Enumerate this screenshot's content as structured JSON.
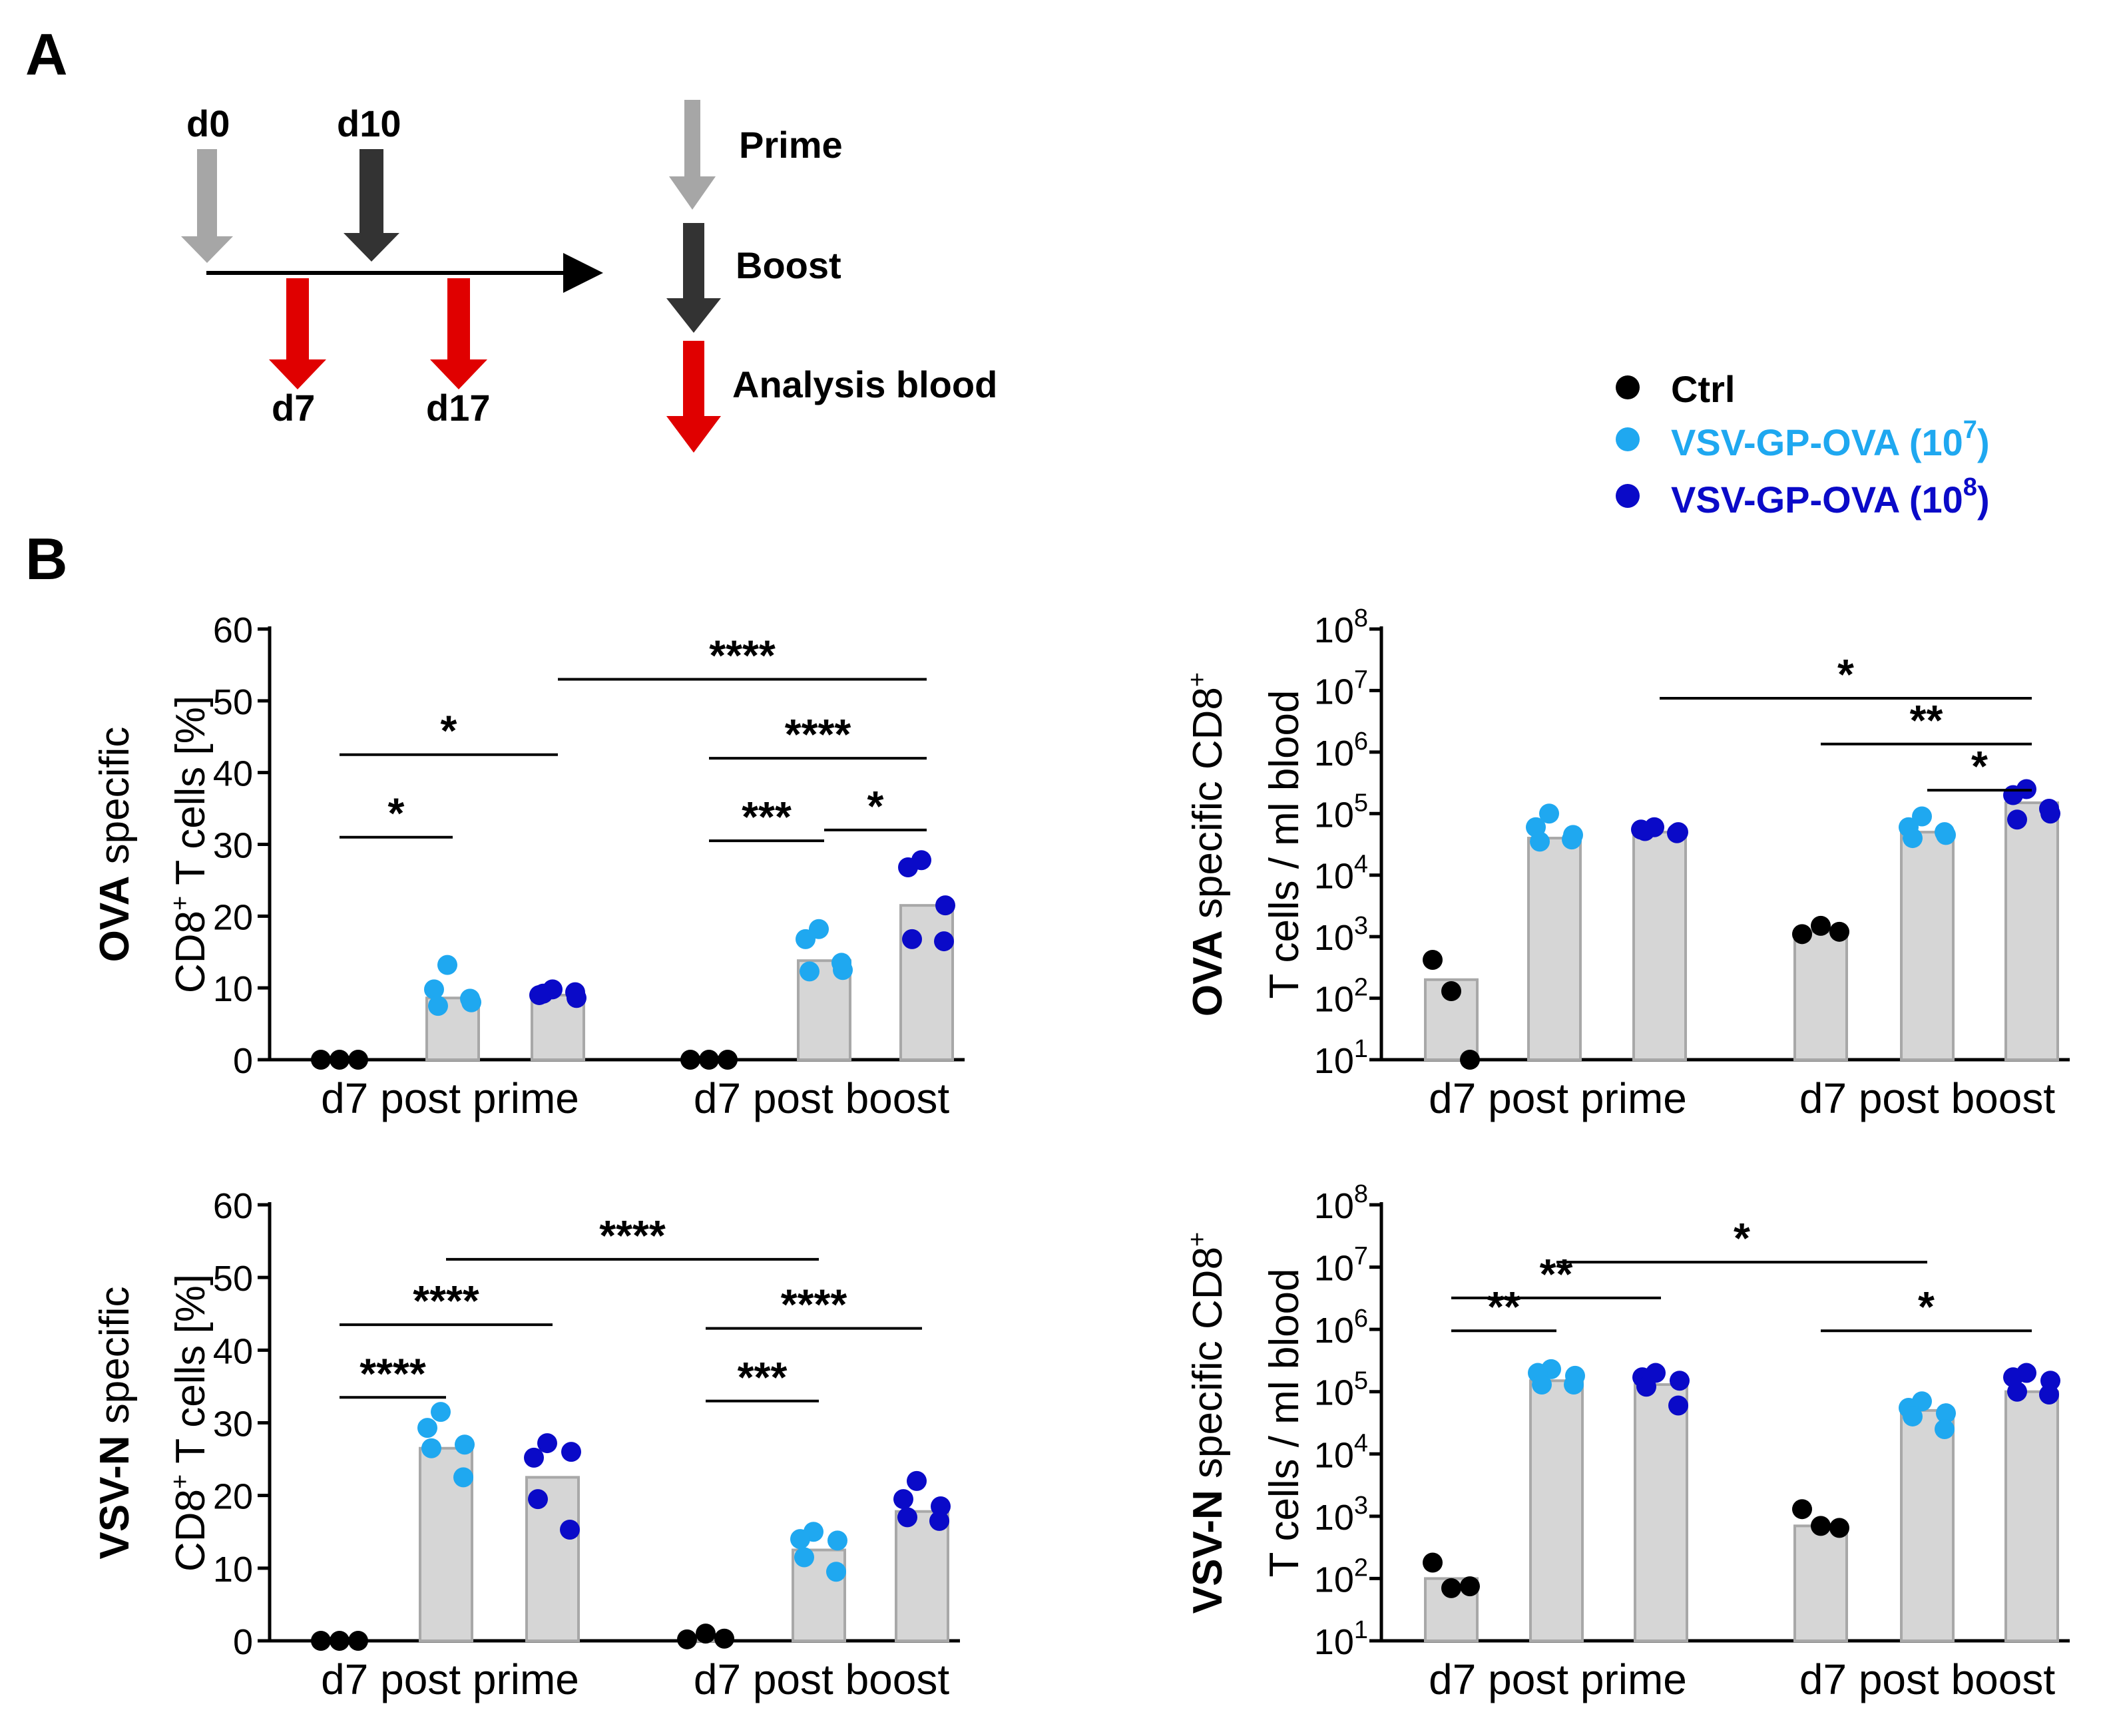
{
  "panel_a": {
    "letter": "A",
    "timeline": {
      "d0": "d0",
      "d10": "d10",
      "d7": "d7",
      "d17": "d17"
    },
    "legend": {
      "prime": "Prime",
      "boost": "Boost",
      "analysis": "Analysis blood"
    }
  },
  "panel_b": {
    "letter": "B"
  },
  "legend": {
    "ctrl": "Ctrl",
    "low_base": "VSV-GP-OVA (10",
    "low_exp": "7",
    "close": ")",
    "high_base": "VSV-GP-OVA (10",
    "high_exp": "8"
  },
  "colors": {
    "ctrl": "#000000",
    "low": "#1fa8f0",
    "high": "#0a0ac8",
    "bar": "#d6d6d6",
    "bar_edge": "#a8a8a8",
    "prime_arrow": "#a6a6a6",
    "boost_arrow": "#333333",
    "analysis_arrow": "#e00000"
  },
  "chart_data": [
    {
      "id": "ova_pct",
      "type": "bar",
      "scale": "linear",
      "ylabel_bold": "OVA",
      "ylabel_rest": " specific",
      "ylabel_line2_a": "CD8",
      "ylabel_line2_sup": "+",
      "ylabel_line2_b": " T cells [%]",
      "ylim": [
        0,
        60
      ],
      "yticks": [
        0,
        10,
        20,
        30,
        40,
        50,
        60
      ],
      "yticklabels": [
        "0",
        "10",
        "20",
        "30",
        "40",
        "50",
        "60"
      ],
      "categories": [
        "d7 post prime",
        "d7 post boost"
      ],
      "series": [
        {
          "name": "Ctrl",
          "values": [
            0,
            0
          ]
        },
        {
          "name": "VSV-GP-OVA (10^7)",
          "values": [
            8.6,
            13.8
          ]
        },
        {
          "name": "VSV-GP-OVA (10^8)",
          "values": [
            9.0,
            21.5
          ]
        }
      ],
      "points": [
        [
          [
            0,
            0,
            0
          ],
          [
            13.2,
            9.8,
            8.0,
            7.5,
            8.5
          ],
          [
            9.8,
            9.0,
            8.6,
            9.2,
            9.4
          ]
        ],
        [
          [
            0,
            0,
            0
          ],
          [
            18.2,
            16.8,
            12.5,
            12.3,
            13.5
          ],
          [
            27.8,
            26.8,
            21.5,
            16.8,
            16.5
          ]
        ]
      ],
      "comparisons": [
        {
          "from": [
            0,
            0
          ],
          "to": [
            0,
            1
          ],
          "y": 31,
          "label": "*"
        },
        {
          "from": [
            0,
            0
          ],
          "to": [
            0,
            2
          ],
          "y": 42.5,
          "label": "*"
        },
        {
          "from": [
            0,
            2
          ],
          "to": [
            1,
            2
          ],
          "y": 53,
          "label": "****"
        },
        {
          "from": [
            1,
            0
          ],
          "to": [
            1,
            2
          ],
          "y": 42,
          "label": "****"
        },
        {
          "from": [
            1,
            0
          ],
          "to": [
            1,
            1
          ],
          "y": 30.5,
          "label": "***"
        },
        {
          "from": [
            1,
            1
          ],
          "to": [
            1,
            2
          ],
          "y": 32,
          "label": "*"
        }
      ]
    },
    {
      "id": "ova_abs",
      "type": "bar",
      "scale": "log",
      "ylabel_bold": "OVA",
      "ylabel_rest": " specific CD8",
      "ylabel_line1_sup": "+",
      "ylabel_line2": "T cells / ml blood",
      "ylim": [
        10,
        100000000
      ],
      "yticks": [
        10,
        100,
        1000,
        10000,
        100000,
        1000000,
        10000000,
        100000000
      ],
      "ytick_exps": [
        "1",
        "2",
        "3",
        "4",
        "5",
        "6",
        "7",
        "8"
      ],
      "ytick_base": "10",
      "categories": [
        "d7 post prime",
        "d7 post boost"
      ],
      "series": [
        {
          "name": "Ctrl",
          "values": [
            200,
            1200
          ]
        },
        {
          "name": "VSV-GP-OVA (10^7)",
          "values": [
            40000,
            50000
          ]
        },
        {
          "name": "VSV-GP-OVA (10^8)",
          "values": [
            50000,
            150000
          ]
        }
      ],
      "points": [
        [
          [
            420,
            130,
            10
          ],
          [
            100000,
            60000,
            45000,
            35000,
            38000
          ],
          [
            60000,
            55000,
            50000,
            52000,
            48000
          ]
        ],
        [
          [
            1100,
            1500,
            1200
          ],
          [
            90000,
            60000,
            45000,
            40000,
            50000
          ],
          [
            250000,
            200000,
            100000,
            80000,
            120000
          ]
        ]
      ],
      "comparisons": [
        {
          "from": [
            0,
            2
          ],
          "to": [
            1,
            2
          ],
          "y": 7500000,
          "label": "*"
        },
        {
          "from": [
            1,
            0
          ],
          "to": [
            1,
            2
          ],
          "y": 1350000,
          "label": "**"
        },
        {
          "from": [
            1,
            1
          ],
          "to": [
            1,
            2
          ],
          "y": 240000,
          "label": "*"
        }
      ]
    },
    {
      "id": "vsvn_pct",
      "type": "bar",
      "scale": "linear",
      "ylabel_bold": "VSV-N",
      "ylabel_rest": " specific",
      "ylabel_line2_a": "CD8",
      "ylabel_line2_sup": "+",
      "ylabel_line2_b": " T cells [%]",
      "ylim": [
        0,
        60
      ],
      "yticks": [
        0,
        10,
        20,
        30,
        40,
        50,
        60
      ],
      "yticklabels": [
        "0",
        "10",
        "20",
        "30",
        "40",
        "50",
        "60"
      ],
      "categories": [
        "d7 post prime",
        "d7 post boost"
      ],
      "series": [
        {
          "name": "Ctrl",
          "values": [
            0,
            0.5
          ]
        },
        {
          "name": "VSV-GP-OVA (10^7)",
          "values": [
            26.5,
            12.5
          ]
        },
        {
          "name": "VSV-GP-OVA (10^8)",
          "values": [
            22.5,
            17.8
          ]
        }
      ],
      "points": [
        [
          [
            0,
            0,
            0
          ],
          [
            31.5,
            29.3,
            27.0,
            26.5,
            22.5
          ],
          [
            27.2,
            25.2,
            26.0,
            19.5,
            15.3
          ]
        ],
        [
          [
            0.2,
            1.0,
            0.3
          ],
          [
            15.0,
            14.0,
            13.8,
            11.5,
            9.5
          ],
          [
            22.0,
            19.5,
            18.5,
            17.0,
            16.5
          ]
        ]
      ],
      "comparisons": [
        {
          "from": [
            0,
            1
          ],
          "to": [
            1,
            1
          ],
          "y": 52.5,
          "label": "****"
        },
        {
          "from": [
            0,
            0
          ],
          "to": [
            0,
            2
          ],
          "y": 43.5,
          "label": "****"
        },
        {
          "from": [
            0,
            0
          ],
          "to": [
            0,
            1
          ],
          "y": 33.5,
          "label": "****"
        },
        {
          "from": [
            1,
            0
          ],
          "to": [
            1,
            2
          ],
          "y": 43,
          "label": "****"
        },
        {
          "from": [
            1,
            0
          ],
          "to": [
            1,
            1
          ],
          "y": 33,
          "label": "***"
        }
      ]
    },
    {
      "id": "vsvn_abs",
      "type": "bar",
      "scale": "log",
      "ylabel_bold": "VSV-N",
      "ylabel_rest": " specific CD8",
      "ylabel_line1_sup": "+",
      "ylabel_line2": "T cells / ml blood",
      "ylim": [
        10,
        100000000
      ],
      "yticks": [
        10,
        100,
        1000,
        10000,
        100000,
        1000000,
        10000000,
        100000000
      ],
      "ytick_exps": [
        "1",
        "2",
        "3",
        "4",
        "5",
        "6",
        "7",
        "8"
      ],
      "ytick_base": "10",
      "categories": [
        "d7 post prime",
        "d7 post boost"
      ],
      "series": [
        {
          "name": "Ctrl",
          "values": [
            100,
            700
          ]
        },
        {
          "name": "VSV-GP-OVA (10^7)",
          "values": [
            150000,
            50000
          ]
        },
        {
          "name": "VSV-GP-OVA (10^8)",
          "values": [
            130000,
            100000
          ]
        }
      ],
      "points": [
        [
          [
            180,
            70,
            75
          ],
          [
            230000,
            200000,
            180000,
            130000,
            130000
          ],
          [
            200000,
            170000,
            150000,
            120000,
            60000
          ]
        ],
        [
          [
            1300,
            700,
            650
          ],
          [
            70000,
            55000,
            45000,
            40000,
            25000
          ],
          [
            200000,
            170000,
            150000,
            100000,
            90000
          ]
        ]
      ],
      "comparisons": [
        {
          "from": [
            0,
            1
          ],
          "to": [
            1,
            1
          ],
          "y": 12000000,
          "label": "*"
        },
        {
          "from": [
            0,
            0
          ],
          "to": [
            0,
            2
          ],
          "y": 3200000,
          "label": "**"
        },
        {
          "from": [
            0,
            0
          ],
          "to": [
            0,
            1
          ],
          "y": 950000,
          "label": "**"
        },
        {
          "from": [
            1,
            0
          ],
          "to": [
            1,
            2
          ],
          "y": 950000,
          "label": "*"
        }
      ]
    }
  ]
}
